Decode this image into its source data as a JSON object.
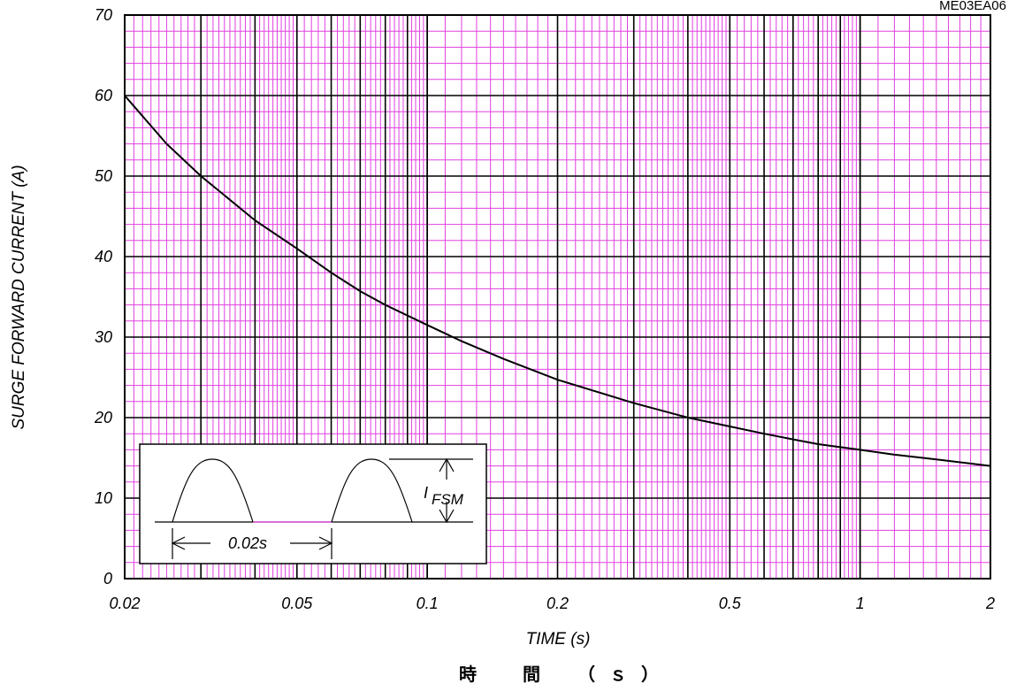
{
  "figure_code": "ME03EA06",
  "chart_data": {
    "type": "line",
    "xscale": "log",
    "xlim": [
      0.02,
      2
    ],
    "ylim": [
      0,
      70
    ],
    "xlabel": "TIME (s)",
    "xlabel_secondary": "時　間　（ｓ）",
    "ylabel": "SURGE FORWARD CURRENT (A)",
    "x_tick_labels": [
      "0.02",
      "0.05",
      "0.1",
      "0.2",
      "0.5",
      "1",
      "2"
    ],
    "x_tick_values": [
      0.02,
      0.05,
      0.1,
      0.2,
      0.5,
      1,
      2
    ],
    "y_tick_labels": [
      "0",
      "10",
      "20",
      "30",
      "40",
      "50",
      "60",
      "70"
    ],
    "y_tick_values": [
      0,
      10,
      20,
      30,
      40,
      50,
      60,
      70
    ],
    "grid": true,
    "grid_minor_color": "#e040e0",
    "grid_major_color": "#000000",
    "line_color": "#000000",
    "series": [
      {
        "x": [
          0.02,
          0.025,
          0.03,
          0.04,
          0.05,
          0.06,
          0.07,
          0.08,
          0.1,
          0.12,
          0.15,
          0.2,
          0.3,
          0.4,
          0.5,
          0.6,
          0.7,
          0.8,
          1.0,
          1.2,
          1.5,
          2.0
        ],
        "y": [
          60,
          54,
          50,
          44.5,
          41,
          38,
          35.7,
          34,
          31.5,
          29.5,
          27.3,
          24.7,
          21.8,
          20,
          18.9,
          18,
          17.3,
          16.7,
          16,
          15.4,
          14.8,
          14
        ]
      }
    ]
  },
  "inset": {
    "current_label": "I",
    "current_label_sub": "FSM",
    "period_label": "0.02s"
  }
}
